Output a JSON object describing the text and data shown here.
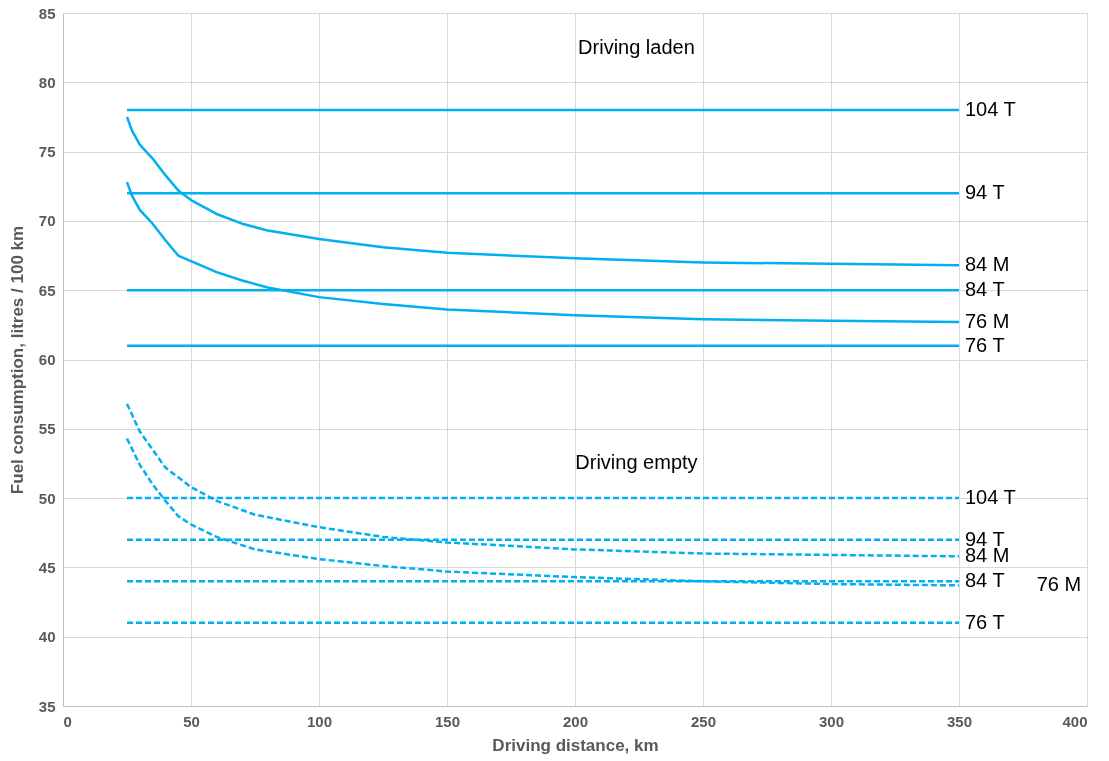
{
  "chart_data": {
    "type": "line",
    "xlabel": "Driving distance, km",
    "ylabel": "Fuel consumption, litres / 100 km",
    "xlim": [
      0,
      400
    ],
    "xticks": [
      0,
      50,
      100,
      150,
      200,
      250,
      300,
      350,
      400
    ],
    "ylim": [
      35,
      85
    ],
    "yticks": [
      35,
      40,
      45,
      50,
      55,
      60,
      65,
      70,
      75,
      80,
      85
    ],
    "grid": true,
    "marker": "none",
    "annotations": [
      "Driving laden",
      "Driving empty"
    ],
    "series": [
      {
        "name": "104 T",
        "color": "#00b0f0",
        "line_style": "solid",
        "x": [
          25,
          350
        ],
        "values": [
          78,
          78
        ]
      },
      {
        "name": "94 T",
        "color": "#00b0f0",
        "line_style": "solid",
        "x": [
          25,
          350
        ],
        "values": [
          72,
          72
        ]
      },
      {
        "name": "84 M",
        "color": "#00b0f0",
        "line_style": "solid",
        "x": [
          25,
          27,
          30,
          35,
          40,
          45,
          50,
          60,
          70,
          80,
          100,
          125,
          150,
          200,
          250,
          300,
          350
        ],
        "values": [
          77.5,
          76.5,
          75.5,
          74.5,
          73.3,
          72.2,
          71.5,
          70.5,
          69.8,
          69.3,
          68.7,
          68.1,
          67.7,
          67.3,
          67.0,
          66.9,
          66.8
        ]
      },
      {
        "name": "84 T",
        "color": "#00b0f0",
        "line_style": "solid",
        "x": [
          25,
          350
        ],
        "values": [
          65,
          65
        ]
      },
      {
        "name": "76 M",
        "color": "#00b0f0",
        "line_style": "solid",
        "x": [
          25,
          27,
          30,
          35,
          40,
          45,
          50,
          60,
          70,
          80,
          100,
          125,
          150,
          200,
          250,
          300,
          350
        ],
        "values": [
          72.8,
          71.8,
          70.8,
          69.8,
          68.6,
          67.5,
          67.1,
          66.3,
          65.7,
          65.2,
          64.5,
          64.0,
          63.6,
          63.2,
          62.9,
          62.8,
          62.7
        ]
      },
      {
        "name": "76 T",
        "color": "#00b0f0",
        "line_style": "solid",
        "x": [
          25,
          350
        ],
        "values": [
          61,
          61
        ]
      },
      {
        "name": "104 T",
        "color": "#00b0f0",
        "line_style": "dashed",
        "x": [
          25,
          350
        ],
        "values": [
          50,
          50
        ]
      },
      {
        "name": "94 T",
        "color": "#00b0f0",
        "line_style": "dashed",
        "x": [
          25,
          350
        ],
        "values": [
          47,
          47
        ]
      },
      {
        "name": "84 M",
        "color": "#00b0f0",
        "line_style": "dashed",
        "x": [
          25,
          30,
          35,
          40,
          50,
          60,
          75,
          100,
          125,
          150,
          200,
          250,
          300,
          350
        ],
        "values": [
          56.8,
          54.8,
          53.5,
          52.2,
          50.8,
          49.8,
          48.8,
          47.9,
          47.2,
          46.8,
          46.3,
          46.0,
          45.9,
          45.8
        ]
      },
      {
        "name": "84 T",
        "color": "#00b0f0",
        "line_style": "dashed",
        "x": [
          25,
          350
        ],
        "values": [
          44,
          44
        ]
      },
      {
        "name": "76 M",
        "color": "#00b0f0",
        "line_style": "dashed",
        "x": [
          25,
          30,
          35,
          40,
          45,
          50,
          60,
          75,
          100,
          125,
          150,
          200,
          250,
          300,
          350
        ],
        "values": [
          54.3,
          52.4,
          51.0,
          49.8,
          48.7,
          48.1,
          47.2,
          46.3,
          45.6,
          45.1,
          44.7,
          44.3,
          44.0,
          43.8,
          43.7
        ]
      },
      {
        "name": "76 T",
        "color": "#00b0f0",
        "line_style": "dashed",
        "x": [
          25,
          350
        ],
        "values": [
          41,
          41
        ]
      }
    ]
  }
}
